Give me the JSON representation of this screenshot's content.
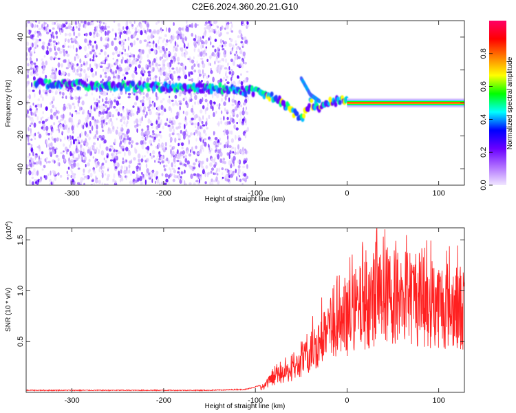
{
  "title": "C2E6.2024.360.20.21.G10",
  "chart_data": [
    {
      "type": "heatmap",
      "xlabel": "Height of straight line (km)",
      "ylabel": "Frequency (Hz)",
      "xlim": [
        -350,
        128
      ],
      "ylim": [
        -50,
        50
      ],
      "x_ticks": [
        -300,
        -200,
        -100,
        0,
        100
      ],
      "y_ticks": [
        -40,
        -20,
        0,
        20,
        40
      ],
      "colorbar": {
        "label": "Normalized spectral amplitude",
        "range": [
          0.0,
          1.0
        ],
        "ticks": [
          "0.0",
          "0.2",
          "0.4",
          "0.6",
          "0.8"
        ],
        "colors": [
          "#f0e6ff",
          "#b070ff",
          "#6a00ff",
          "#0000ff",
          "#00ffff",
          "#00ff00",
          "#ffff00",
          "#ff8000",
          "#ff0000",
          "#ff0066"
        ]
      },
      "ridge": {
        "x": [
          -340,
          -300,
          -260,
          -220,
          -180,
          -140,
          -120,
          -100,
          -90,
          -80,
          -70,
          -60,
          -50,
          -40,
          -30,
          -20,
          -10,
          0,
          10,
          50,
          128
        ],
        "y": [
          12,
          11,
          10,
          10,
          9,
          9,
          8,
          7,
          5,
          3,
          0,
          -5,
          -10,
          0,
          -3,
          0,
          1,
          2,
          0,
          0,
          0
        ]
      },
      "branch": {
        "x": [
          -50,
          -45,
          -40,
          -35,
          -30
        ],
        "y": [
          15,
          10,
          5,
          3,
          1
        ]
      }
    },
    {
      "type": "line",
      "xlabel": "Height of straight line (km)",
      "ylabel": "SNR (10 * v/v)",
      "y_multiplier": "(x10",
      "y_multiplier_exp": "4",
      "xlim": [
        -350,
        128
      ],
      "ylim": [
        0,
        1.62
      ],
      "x_ticks": [
        -300,
        -200,
        -100,
        0,
        100
      ],
      "y_ticks": [
        "0.5",
        "1.0",
        "1.5"
      ],
      "series": [
        {
          "color": "#ff2020",
          "x": [
            -350,
            -250,
            -150,
            -110,
            -90,
            -80,
            -70,
            -60,
            -50,
            -40,
            -30,
            -20,
            -10,
            0,
            10,
            20,
            30,
            40,
            50,
            60,
            70,
            80,
            90,
            100,
            110,
            120,
            128
          ],
          "y": [
            0.02,
            0.02,
            0.02,
            0.03,
            0.08,
            0.2,
            0.25,
            0.3,
            0.4,
            0.55,
            0.7,
            0.8,
            0.9,
            1.0,
            1.1,
            1.2,
            1.28,
            1.32,
            1.32,
            1.3,
            1.28,
            1.25,
            1.22,
            1.2,
            1.18,
            1.17,
            1.15
          ]
        }
      ]
    }
  ]
}
